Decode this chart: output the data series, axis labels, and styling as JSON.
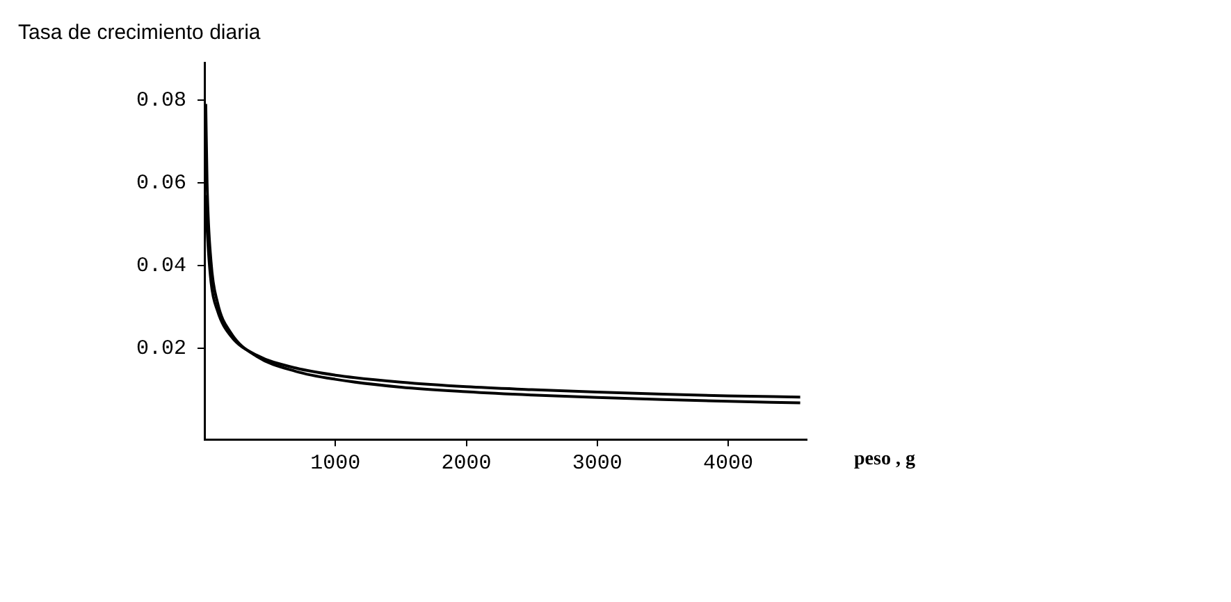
{
  "chart_data": {
    "type": "line",
    "title": "Tasa de crecimiento diaria",
    "xlabel": "peso , g",
    "series": [
      {
        "color": "#000000",
        "x": [
          10,
          20,
          50,
          100,
          200,
          400,
          700,
          1000,
          1500,
          2000,
          2500,
          3000,
          3500,
          4000,
          4550
        ],
        "values": [
          0.079,
          0.06,
          0.041,
          0.031,
          0.0238,
          0.018,
          0.0144,
          0.0125,
          0.0106,
          0.0095,
          0.0087,
          0.0081,
          0.0076,
          0.0072,
          0.0068
        ]
      },
      {
        "color": "#000000",
        "x": [
          10,
          20,
          50,
          100,
          200,
          400,
          700,
          1000,
          1500,
          2000,
          2500,
          3000,
          3500,
          4000,
          4550
        ],
        "values": [
          0.057,
          0.049,
          0.036,
          0.029,
          0.023,
          0.0183,
          0.0152,
          0.0135,
          0.0118,
          0.0107,
          0.01,
          0.0094,
          0.0089,
          0.0085,
          0.0082
        ]
      }
    ],
    "xlim": [
      0,
      4600
    ],
    "xticks": [
      1000,
      2000,
      3000,
      4000
    ],
    "ylim": [
      -0.002,
      0.089
    ],
    "yticks": [
      0.02,
      0.04,
      0.06,
      0.08
    ],
    "grid": false,
    "legend": false,
    "marker": "none",
    "line_style": "solid"
  }
}
